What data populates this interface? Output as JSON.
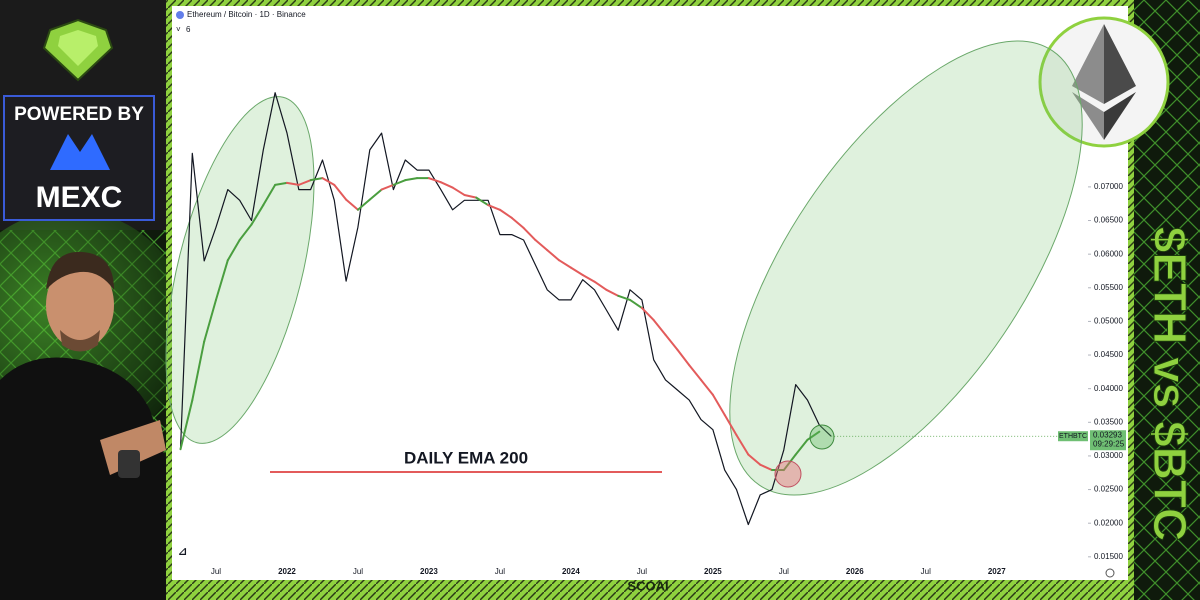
{
  "chart_data": {
    "type": "line",
    "title": "Ethereum / Bitcoin · 1D · Binance",
    "indicator_count": "6",
    "annotation": "DAILY EMA 200",
    "categories": [
      null,
      null,
      null,
      "Jul",
      null,
      null,
      null,
      null,
      null,
      "2022",
      null,
      null,
      null,
      null,
      null,
      "Jul",
      null,
      null,
      null,
      null,
      null,
      "2023",
      null,
      null,
      null,
      null,
      null,
      "Jul",
      null,
      null,
      null,
      null,
      null,
      "2024",
      null,
      null,
      null,
      null,
      null,
      "Jul",
      null,
      null,
      null,
      null,
      null,
      "2025",
      null,
      null,
      null,
      null,
      null,
      "Jul",
      null,
      null,
      null,
      null,
      null,
      "2026",
      null,
      null,
      null,
      null,
      null,
      "Jul",
      null,
      null,
      null,
      null,
      null,
      "2027",
      null,
      null,
      null,
      null,
      null
    ],
    "series": [
      {
        "name": "ETHBTC",
        "color": "#131722",
        "values": [
          0.031,
          0.075,
          0.059,
          0.064,
          0.0696,
          0.068,
          0.065,
          0.0755,
          0.084,
          0.078,
          0.0696,
          0.0696,
          0.074,
          0.068,
          0.056,
          0.064,
          0.0755,
          0.078,
          0.0696,
          0.074,
          0.0725,
          0.0725,
          0.0696,
          0.0666,
          0.068,
          0.068,
          0.068,
          0.0629,
          0.0629,
          0.0621,
          0.0584,
          0.0547,
          0.0532,
          0.0532,
          0.0562,
          0.0547,
          0.0517,
          0.0487,
          0.0547,
          0.0532,
          0.0443,
          0.0413,
          0.0398,
          0.0383,
          0.0354,
          0.0339,
          0.0279,
          0.025,
          0.0198,
          0.0242,
          0.025,
          0.0309,
          0.0406,
          0.0383,
          0.0346,
          0.03293,
          null,
          null,
          null,
          null,
          null,
          null,
          null,
          null,
          null,
          null,
          null,
          null,
          null,
          null,
          null,
          null,
          null,
          null,
          null
        ]
      },
      {
        "name": "DAILY EMA 200",
        "color": "#e35b5b",
        "color_above": "#4a9e3f",
        "values": [
          0.031,
          0.0383,
          0.047,
          0.0532,
          0.0591,
          0.0621,
          0.0644,
          0.0673,
          0.0703,
          0.0706,
          0.0703,
          0.071,
          0.0713,
          0.0703,
          0.0681,
          0.0666,
          0.0681,
          0.0696,
          0.0703,
          0.071,
          0.0713,
          0.0713,
          0.0707,
          0.0699,
          0.0688,
          0.0684,
          0.0673,
          0.0666,
          0.0654,
          0.0639,
          0.0621,
          0.0606,
          0.0591,
          0.058,
          0.0569,
          0.0559,
          0.0547,
          0.0538,
          0.0532,
          0.052,
          0.0502,
          0.048,
          0.0458,
          0.0435,
          0.0413,
          0.0391,
          0.0361,
          0.0331,
          0.0302,
          0.0287,
          0.0279,
          0.0279,
          0.0302,
          0.0324,
          0.0336,
          null,
          null,
          null,
          null,
          null,
          null,
          null,
          null,
          null,
          null,
          null,
          null,
          null,
          null,
          null,
          null,
          null,
          null,
          null,
          null
        ]
      }
    ],
    "last_price_tag": "ETHBTC",
    "countdown": "09:29:25",
    "ylim": [
      0.012,
      0.0963
    ],
    "yticks": [
      {
        "value": 0.015,
        "label": "0.01500"
      },
      {
        "value": 0.02,
        "label": "0.02000"
      },
      {
        "value": 0.025,
        "label": "0.02500"
      },
      {
        "value": 0.03,
        "label": "0.03000"
      },
      {
        "value": 0.035,
        "label": "0.03500"
      },
      {
        "value": 0.04,
        "label": "0.04000"
      },
      {
        "value": 0.045,
        "label": "0.04500"
      },
      {
        "value": 0.05,
        "label": "0.05000"
      },
      {
        "value": 0.055,
        "label": "0.05500"
      },
      {
        "value": 0.06,
        "label": "0.06000"
      },
      {
        "value": 0.065,
        "label": "0.06500"
      },
      {
        "value": 0.07,
        "label": "0.07000"
      }
    ],
    "grid": false
  },
  "overlay": {
    "powered_by": "POWERED BY",
    "brand": "MEXC",
    "headline": "$ETH vs $BTC",
    "watermark": "SCOAI"
  }
}
